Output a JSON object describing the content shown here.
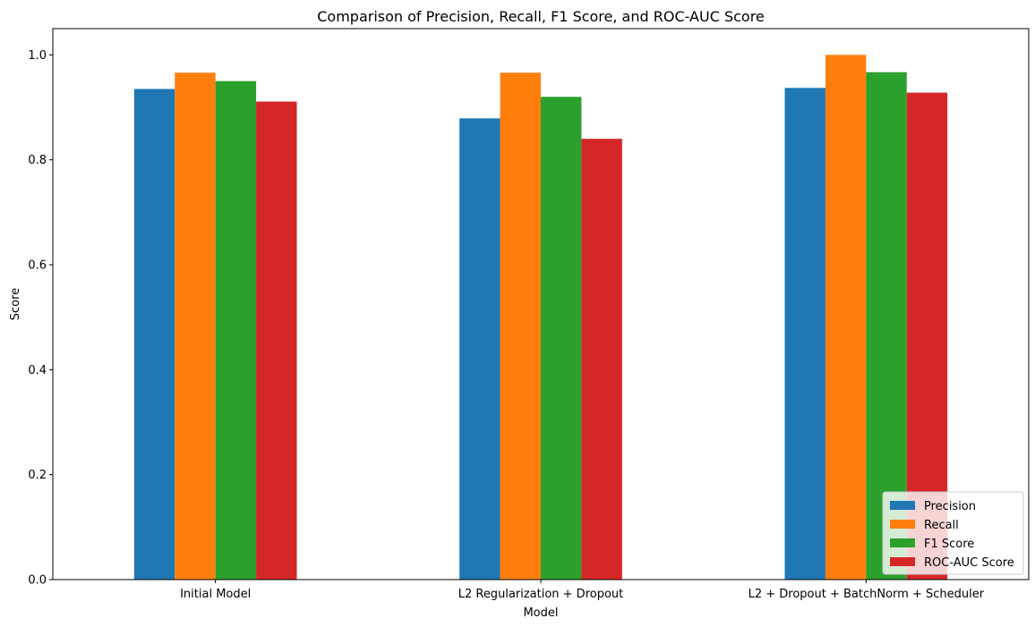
{
  "chart_data": {
    "type": "bar",
    "title": "Comparison of Precision, Recall, F1 Score, and ROC-AUC Score",
    "xlabel": "Model",
    "ylabel": "Score",
    "categories": [
      "Initial Model",
      "L2 Regularization + Dropout",
      "L2 + Dropout + BatchNorm + Scheduler"
    ],
    "series": [
      {
        "name": "Precision",
        "color": "#1f77b4",
        "values": [
          0.935,
          0.879,
          0.937
        ]
      },
      {
        "name": "Recall",
        "color": "#ff7f0e",
        "values": [
          0.966,
          0.966,
          1.0
        ]
      },
      {
        "name": "F1 Score",
        "color": "#2ca02c",
        "values": [
          0.95,
          0.92,
          0.967
        ]
      },
      {
        "name": "ROC-AUC Score",
        "color": "#d62728",
        "values": [
          0.911,
          0.84,
          0.928
        ]
      }
    ],
    "ylim": [
      0,
      1.05
    ],
    "yticks": [
      "0.0",
      "0.2",
      "0.4",
      "0.6",
      "0.8",
      "1.0"
    ],
    "grid": false,
    "legend_position": "lower-right"
  }
}
